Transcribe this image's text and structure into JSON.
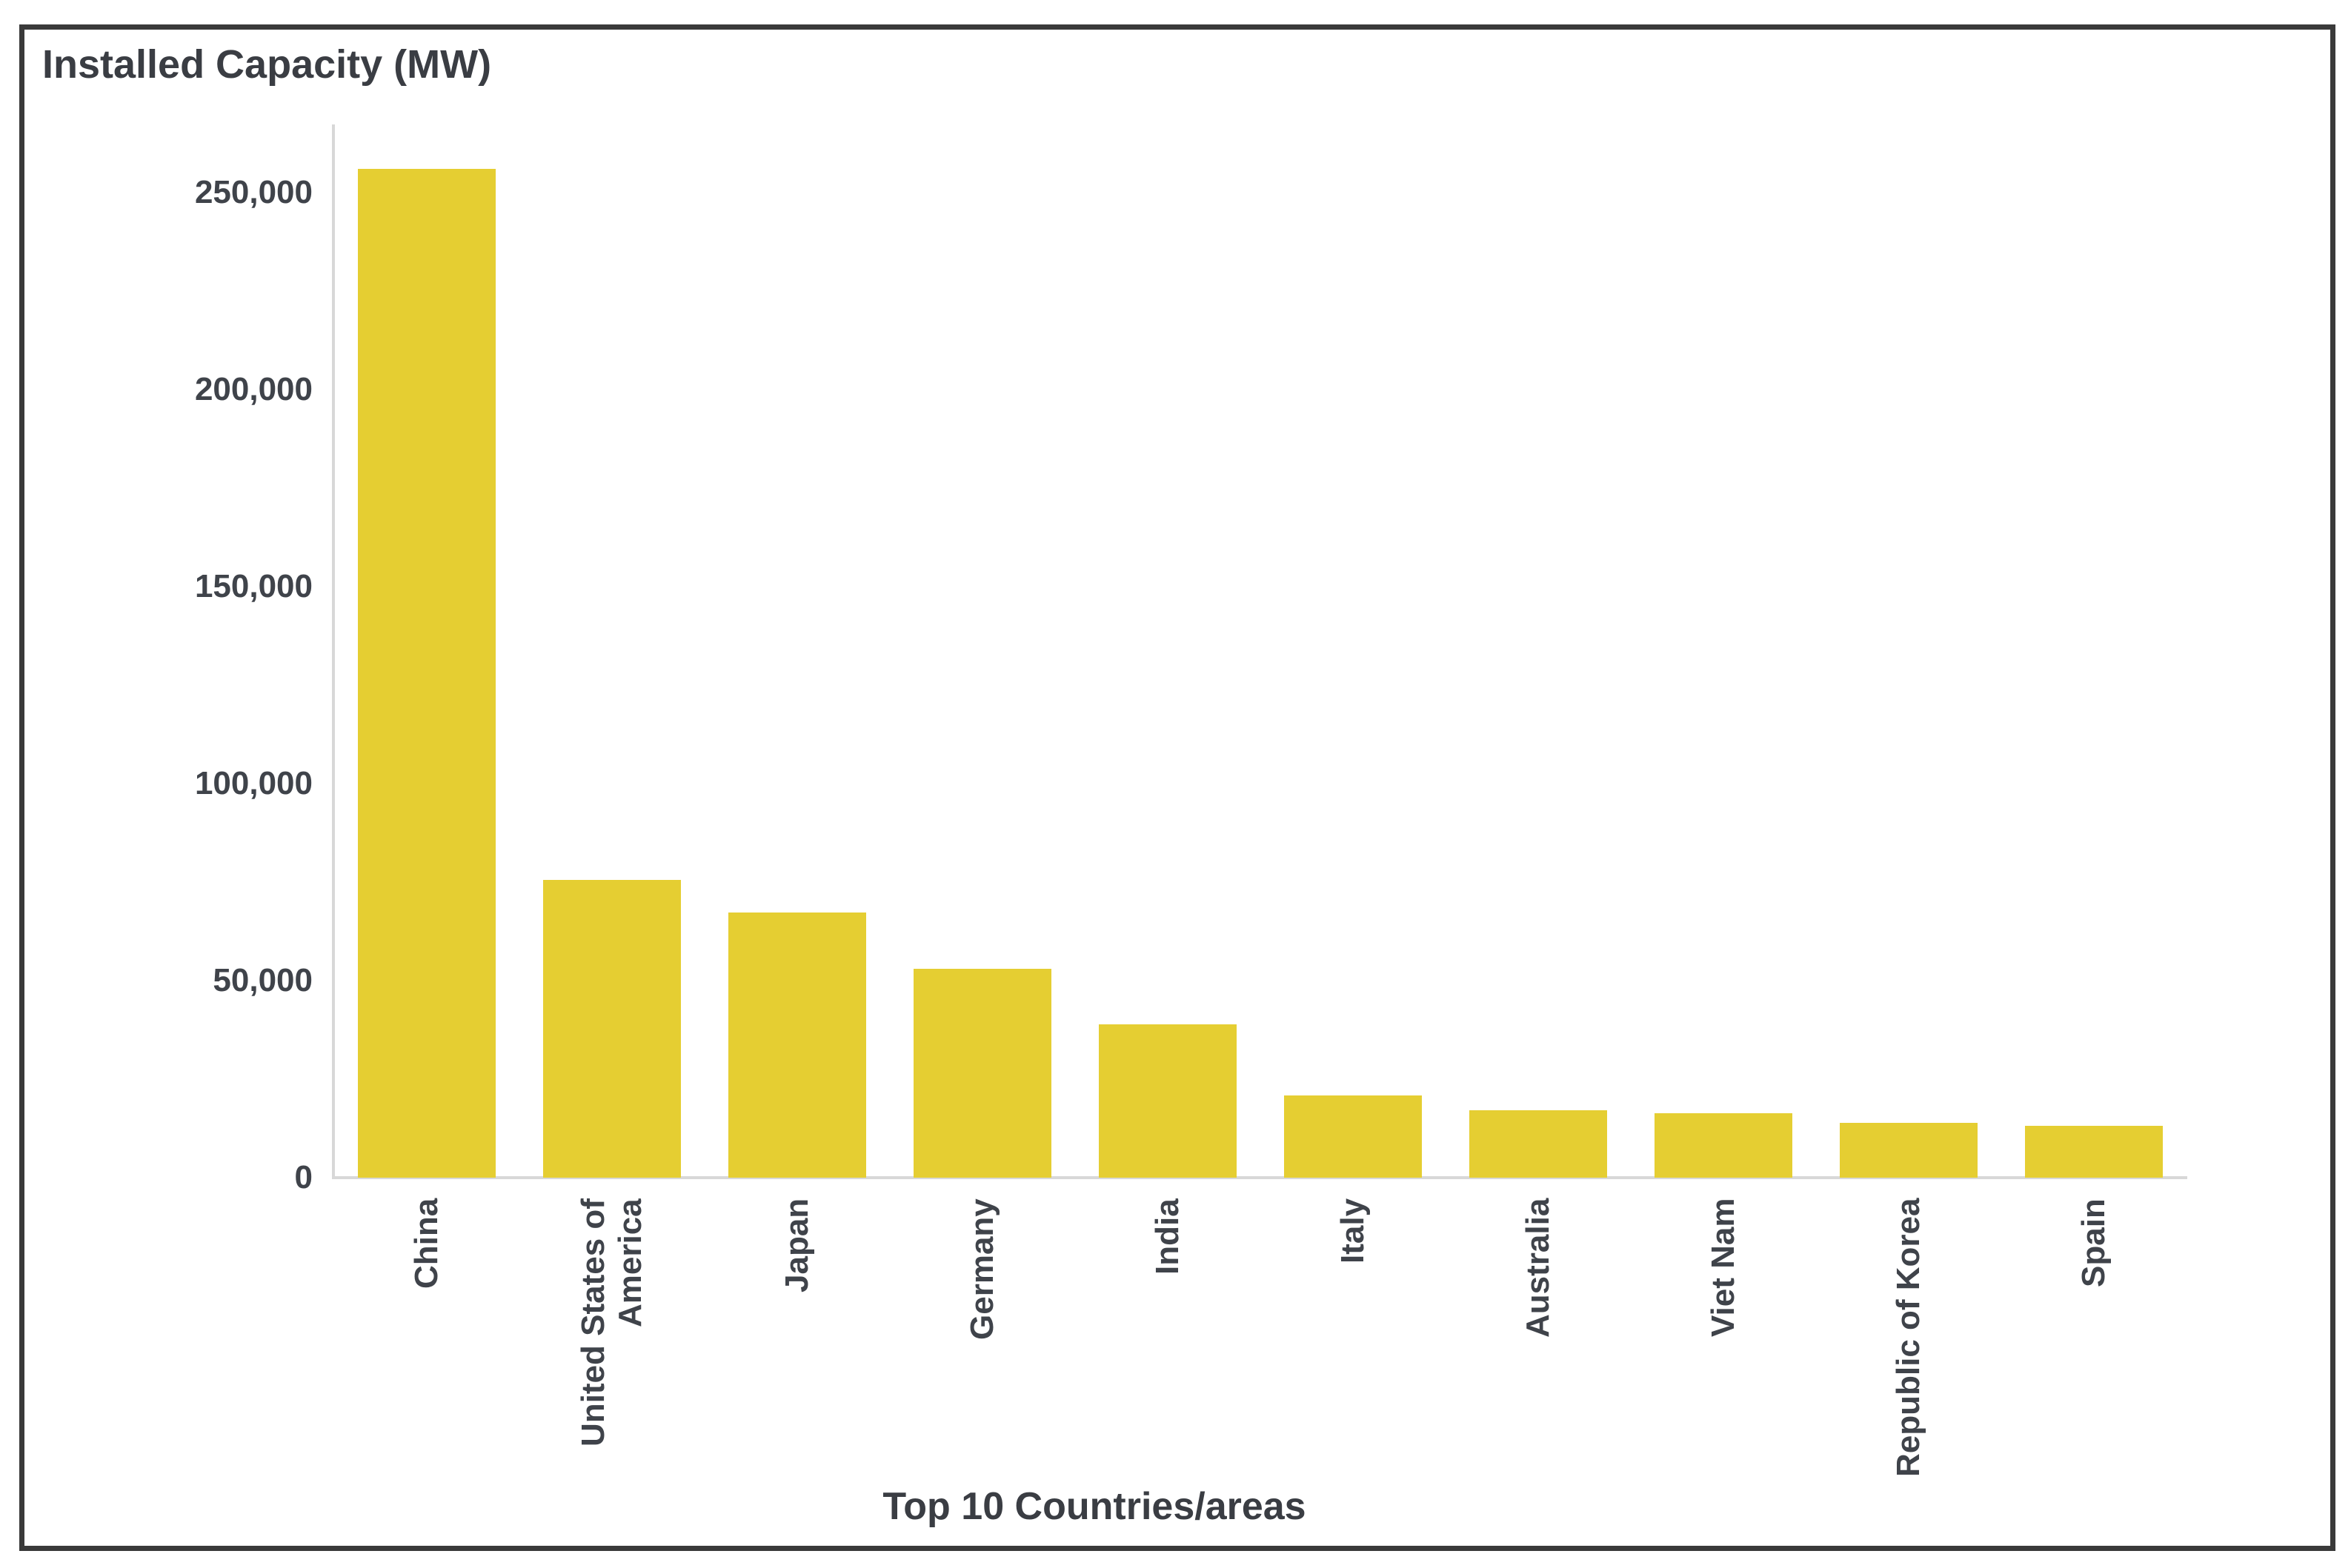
{
  "chart_data": {
    "type": "bar",
    "title": "Installed Capacity (MW)",
    "xlabel": "Top 10 Countries/areas",
    "ylabel": "",
    "categories": [
      "China",
      "United States of\nAmerica",
      "Japan",
      "Germany",
      "India",
      "Italy",
      "Australia",
      "Viet Nam",
      "Republic of Korea",
      "Spain"
    ],
    "values": [
      256000,
      75600,
      67300,
      53000,
      38900,
      20900,
      17100,
      16400,
      13900,
      13200
    ],
    "ylim": [
      0,
      250000
    ],
    "ytick_interval": 50000,
    "ytick_labels": [
      "0",
      "50,000",
      "100,000",
      "150,000",
      "200,000",
      "250,000"
    ],
    "grid": false,
    "legend": "none",
    "colors": {
      "bar": "#e5ce32",
      "axis_line": "#d8d8d8",
      "tick_text": "#3f434a",
      "title_text": "#3a3d43",
      "frame_border": "#3a3a3a"
    }
  }
}
